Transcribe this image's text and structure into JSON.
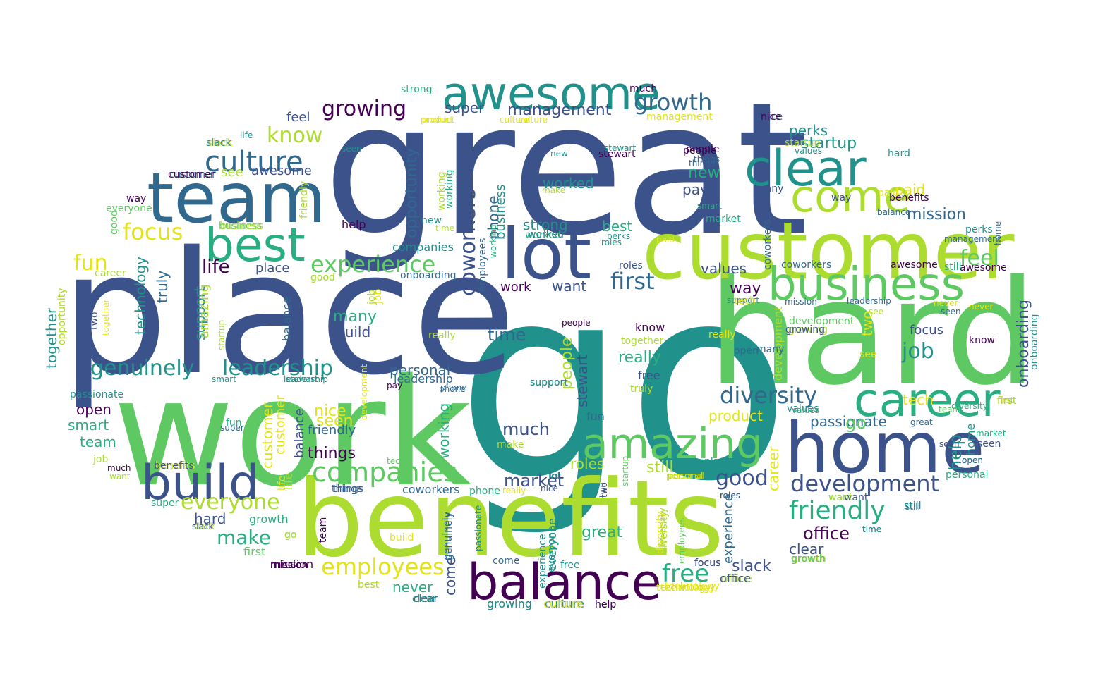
{
  "palette": {
    "c0": "#440154",
    "c1": "#3b528b",
    "c2": "#31688e",
    "c3": "#21918c",
    "c4": "#28ae80",
    "c5": "#5ec962",
    "c6": "#addc30",
    "c7": "#e3e418"
  },
  "words": [
    {
      "text": "go",
      "color": "c3"
    },
    {
      "text": "great",
      "color": "c1"
    },
    {
      "text": "place",
      "color": "c1"
    },
    {
      "text": "work",
      "color": "c5"
    },
    {
      "text": "hard",
      "color": "c5"
    },
    {
      "text": "benefits",
      "color": "c6"
    },
    {
      "text": "customer",
      "color": "c6"
    },
    {
      "text": "team",
      "color": "c2"
    },
    {
      "text": "awesome",
      "color": "c3"
    },
    {
      "text": "lot",
      "color": "c1"
    },
    {
      "text": "home",
      "color": "c1"
    },
    {
      "text": "clear",
      "color": "c3"
    },
    {
      "text": "come",
      "color": "c6"
    },
    {
      "text": "best",
      "color": "c4"
    },
    {
      "text": "business",
      "color": "c5"
    },
    {
      "text": "career",
      "color": "c4"
    },
    {
      "text": "balance",
      "color": "c0"
    },
    {
      "text": "build",
      "color": "c1"
    },
    {
      "text": "amazing",
      "color": "c5"
    },
    {
      "text": "culture",
      "color": "c2"
    },
    {
      "text": "growing",
      "color": "c0"
    },
    {
      "text": "growth",
      "color": "c2"
    },
    {
      "text": "companies",
      "color": "c5"
    },
    {
      "text": "development",
      "color": "c1"
    },
    {
      "text": "genuinely",
      "color": "c3"
    },
    {
      "text": "leadership",
      "color": "c3"
    },
    {
      "text": "diversity",
      "color": "c2"
    },
    {
      "text": "friendly",
      "color": "c4"
    },
    {
      "text": "experience",
      "color": "c5"
    },
    {
      "text": "employees",
      "color": "c7"
    },
    {
      "text": "everyone",
      "color": "c6"
    },
    {
      "text": "coworkers",
      "color": "c1"
    },
    {
      "text": "opportunity",
      "color": "c2"
    },
    {
      "text": "first",
      "color": "c2"
    },
    {
      "text": "focus",
      "color": "c7"
    },
    {
      "text": "know",
      "color": "c6"
    },
    {
      "text": "fun",
      "color": "c7"
    },
    {
      "text": "free",
      "color": "c4"
    },
    {
      "text": "feel",
      "color": "c5"
    },
    {
      "text": "job",
      "color": "c3"
    },
    {
      "text": "management",
      "color": "c1"
    },
    {
      "text": "good",
      "color": "c1"
    },
    {
      "text": "mission",
      "color": "c2"
    },
    {
      "text": "startup",
      "color": "c3"
    },
    {
      "text": "perks",
      "color": "c3"
    },
    {
      "text": "office",
      "color": "c0"
    },
    {
      "text": "super",
      "color": "c1"
    },
    {
      "text": "life",
      "color": "c0"
    },
    {
      "text": "make",
      "color": "c4"
    },
    {
      "text": "much",
      "color": "c1"
    },
    {
      "text": "time",
      "color": "c2"
    },
    {
      "text": "market",
      "color": "c1"
    },
    {
      "text": "passionate",
      "color": "c2"
    },
    {
      "text": "paid",
      "color": "c7"
    },
    {
      "text": "help",
      "color": "c3"
    },
    {
      "text": "worked",
      "color": "c3"
    },
    {
      "text": "strong",
      "color": "c3"
    },
    {
      "text": "new",
      "color": "c4"
    },
    {
      "text": "pay",
      "color": "c1"
    },
    {
      "text": "values",
      "color": "c1"
    },
    {
      "text": "way",
      "color": "c0"
    },
    {
      "text": "technology",
      "color": "c3"
    },
    {
      "text": "truly",
      "color": "c2"
    },
    {
      "text": "support",
      "color": "c3"
    },
    {
      "text": "people",
      "color": "c6"
    },
    {
      "text": "stewart",
      "color": "c1"
    },
    {
      "text": "seen",
      "color": "c7"
    },
    {
      "text": "nice",
      "color": "c7"
    },
    {
      "text": "still",
      "color": "c6"
    },
    {
      "text": "roles",
      "color": "c6"
    },
    {
      "text": "open",
      "color": "c0"
    },
    {
      "text": "smart",
      "color": "c4"
    },
    {
      "text": "things",
      "color": "c0"
    },
    {
      "text": "product",
      "color": "c7"
    },
    {
      "text": "tech",
      "color": "c7"
    },
    {
      "text": "two",
      "color": "c7"
    },
    {
      "text": "slack",
      "color": "c1"
    },
    {
      "text": "never",
      "color": "c4"
    },
    {
      "text": "onboarding",
      "color": "c1"
    },
    {
      "text": "want",
      "color": "c1"
    },
    {
      "text": "really",
      "color": "c4"
    },
    {
      "text": "many",
      "color": "c4"
    },
    {
      "text": "personal",
      "color": "c2"
    },
    {
      "text": "working",
      "color": "c4"
    },
    {
      "text": "phone",
      "color": "c2"
    },
    {
      "text": "together",
      "color": "c3"
    },
    {
      "text": "see",
      "color": "c6"
    },
    {
      "text": "hard",
      "color": "c1"
    },
    {
      "text": "great",
      "color": "c4"
    },
    {
      "text": "place",
      "color": "c1"
    },
    {
      "text": "work",
      "color": "c0"
    },
    {
      "text": "best",
      "color": "c4"
    },
    {
      "text": "customer",
      "color": "c7"
    },
    {
      "text": "team",
      "color": "c4"
    },
    {
      "text": "amazing",
      "color": "c6"
    },
    {
      "text": "awesome",
      "color": "c1"
    },
    {
      "text": "benefits",
      "color": "c7"
    },
    {
      "text": "business",
      "color": "c3"
    },
    {
      "text": "balance",
      "color": "c1"
    },
    {
      "text": "build",
      "color": "c1"
    },
    {
      "text": "career",
      "color": "c7"
    },
    {
      "text": "clear",
      "color": "c1"
    },
    {
      "text": "come",
      "color": "c1"
    },
    {
      "text": "companies",
      "color": "c3"
    },
    {
      "text": "coworkers",
      "color": "c2"
    },
    {
      "text": "culture",
      "color": "c7"
    },
    {
      "text": "customer",
      "color": "c7"
    },
    {
      "text": "development",
      "color": "c6"
    },
    {
      "text": "diversity",
      "color": "c6"
    },
    {
      "text": "employees",
      "color": "c2"
    },
    {
      "text": "everyone",
      "color": "c3"
    },
    {
      "text": "experience",
      "color": "c2"
    },
    {
      "text": "feel",
      "color": "c1"
    },
    {
      "text": "first",
      "color": "c5"
    },
    {
      "text": "focus",
      "color": "c1"
    },
    {
      "text": "free",
      "color": "c1"
    },
    {
      "text": "friendly",
      "color": "c2"
    },
    {
      "text": "fun",
      "color": "c2"
    },
    {
      "text": "genuinely",
      "color": "c2"
    },
    {
      "text": "go",
      "color": "c5"
    },
    {
      "text": "good",
      "color": "c6"
    },
    {
      "text": "growing",
      "color": "c2"
    },
    {
      "text": "growth",
      "color": "c4"
    },
    {
      "text": "hard",
      "color": "c3"
    },
    {
      "text": "help",
      "color": "c0"
    },
    {
      "text": "home",
      "color": "c3"
    },
    {
      "text": "job",
      "color": "c6"
    },
    {
      "text": "know",
      "color": "c0"
    },
    {
      "text": "leadership",
      "color": "c2"
    },
    {
      "text": "life",
      "color": "c6"
    },
    {
      "text": "lot",
      "color": "c1"
    },
    {
      "text": "make",
      "color": "c6"
    },
    {
      "text": "management",
      "color": "c7"
    },
    {
      "text": "many",
      "color": "c1"
    },
    {
      "text": "market",
      "color": "c4"
    },
    {
      "text": "mission",
      "color": "c0"
    },
    {
      "text": "much",
      "color": "c0"
    },
    {
      "text": "never",
      "color": "c7"
    },
    {
      "text": "new",
      "color": "c3"
    },
    {
      "text": "nice",
      "color": "c1"
    },
    {
      "text": "office",
      "color": "c6"
    },
    {
      "text": "onboarding",
      "color": "c3"
    },
    {
      "text": "open",
      "color": "c2"
    },
    {
      "text": "opportunity",
      "color": "c7"
    },
    {
      "text": "paid",
      "color": "c7"
    },
    {
      "text": "passionate",
      "color": "c3"
    },
    {
      "text": "pay",
      "color": "c0"
    },
    {
      "text": "people",
      "color": "c0"
    },
    {
      "text": "perks",
      "color": "c3"
    },
    {
      "text": "personal",
      "color": "c4"
    },
    {
      "text": "phone",
      "color": "c4"
    },
    {
      "text": "product",
      "color": "c7"
    },
    {
      "text": "really",
      "color": "c7"
    },
    {
      "text": "roles",
      "color": "c1"
    },
    {
      "text": "see",
      "color": "c7"
    },
    {
      "text": "seen",
      "color": "c1"
    },
    {
      "text": "slack",
      "color": "c7"
    },
    {
      "text": "smart",
      "color": "c3"
    },
    {
      "text": "startup",
      "color": "c6"
    },
    {
      "text": "stewart",
      "color": "c0"
    },
    {
      "text": "still",
      "color": "c3"
    },
    {
      "text": "strong",
      "color": "c4"
    },
    {
      "text": "super",
      "color": "c2"
    },
    {
      "text": "support",
      "color": "c3"
    },
    {
      "text": "tech",
      "color": "c7"
    },
    {
      "text": "technology",
      "color": "c7"
    },
    {
      "text": "things",
      "color": "c1"
    },
    {
      "text": "time",
      "color": "c1"
    },
    {
      "text": "together",
      "color": "c7"
    },
    {
      "text": "truly",
      "color": "c3"
    },
    {
      "text": "two",
      "color": "c1"
    },
    {
      "text": "values",
      "color": "c3"
    },
    {
      "text": "want",
      "color": "c6"
    },
    {
      "text": "way",
      "color": "c0"
    },
    {
      "text": "worked",
      "color": "c2"
    },
    {
      "text": "working",
      "color": "c6"
    },
    {
      "text": "best",
      "color": "c7"
    },
    {
      "text": "clear",
      "color": "c2"
    },
    {
      "text": "culture",
      "color": "c3"
    },
    {
      "text": "leadership",
      "color": "c3"
    },
    {
      "text": "growth",
      "color": "c5"
    },
    {
      "text": "balance",
      "color": "c2"
    },
    {
      "text": "awesome",
      "color": "c0"
    },
    {
      "text": "benefits",
      "color": "c0"
    },
    {
      "text": "job",
      "color": "c7"
    },
    {
      "text": "business",
      "color": "c5"
    },
    {
      "text": "diversity",
      "color": "c6"
    },
    {
      "text": "development",
      "color": "c7"
    },
    {
      "text": "coworkers",
      "color": "c2"
    },
    {
      "text": "people",
      "color": "c0"
    },
    {
      "text": "things",
      "color": "c2"
    },
    {
      "text": "personal",
      "color": "c6"
    },
    {
      "text": "values",
      "color": "c3"
    },
    {
      "text": "perks",
      "color": "c3"
    },
    {
      "text": "customer",
      "color": "c2"
    },
    {
      "text": "everyone",
      "color": "c4"
    },
    {
      "text": "slack",
      "color": "c6"
    },
    {
      "text": "life",
      "color": "c3"
    },
    {
      "text": "seen",
      "color": "c3"
    },
    {
      "text": "new",
      "color": "c3"
    },
    {
      "text": "make",
      "color": "c6"
    },
    {
      "text": "many",
      "color": "c2"
    },
    {
      "text": "two",
      "color": "c1"
    },
    {
      "text": "friendly",
      "color": "c6"
    },
    {
      "text": "management",
      "color": "c2"
    },
    {
      "text": "paid",
      "color": "c7"
    },
    {
      "text": "mission",
      "color": "c2"
    },
    {
      "text": "working",
      "color": "c4"
    },
    {
      "text": "support",
      "color": "c3"
    },
    {
      "text": "onboarding",
      "color": "c2"
    },
    {
      "text": "technology",
      "color": "c7"
    },
    {
      "text": "leadership",
      "color": "c2"
    },
    {
      "text": "still",
      "color": "c4"
    },
    {
      "text": "want",
      "color": "c4"
    },
    {
      "text": "time",
      "color": "c6"
    },
    {
      "text": "phone",
      "color": "c2"
    },
    {
      "text": "good",
      "color": "c5"
    },
    {
      "text": "roles",
      "color": "c0"
    },
    {
      "text": "market",
      "color": "c4"
    },
    {
      "text": "together",
      "color": "c6"
    },
    {
      "text": "awesome",
      "color": "c0"
    },
    {
      "text": "know",
      "color": "c0"
    },
    {
      "text": "open",
      "color": "c2"
    },
    {
      "text": "seen",
      "color": "c2"
    },
    {
      "text": "never",
      "color": "c7"
    },
    {
      "text": "see",
      "color": "c6"
    },
    {
      "text": "first",
      "color": "c7"
    },
    {
      "text": "really",
      "color": "c6"
    },
    {
      "text": "startup",
      "color": "c6"
    },
    {
      "text": "balance",
      "color": "c2"
    },
    {
      "text": "passionate",
      "color": "c3"
    },
    {
      "text": "great",
      "color": "c2"
    },
    {
      "text": "home",
      "color": "c2"
    },
    {
      "text": "development",
      "color": "c5"
    },
    {
      "text": "growing",
      "color": "c6"
    },
    {
      "text": "values",
      "color": "c4"
    },
    {
      "text": "coworkers",
      "color": "c2"
    },
    {
      "text": "truly",
      "color": "c6"
    },
    {
      "text": "stewart",
      "color": "c3"
    },
    {
      "text": "people",
      "color": "c0"
    },
    {
      "text": "things",
      "color": "c2"
    },
    {
      "text": "personal",
      "color": "c6"
    },
    {
      "text": "nice",
      "color": "c0"
    },
    {
      "text": "smart",
      "color": "c4"
    },
    {
      "text": "culture",
      "color": "c7"
    },
    {
      "text": "product",
      "color": "c7"
    },
    {
      "text": "customer",
      "color": "c0"
    },
    {
      "text": "way",
      "color": "c1"
    },
    {
      "text": "everyone",
      "color": "c5"
    },
    {
      "text": "business",
      "color": "c6"
    },
    {
      "text": "opportunity",
      "color": "c6"
    },
    {
      "text": "career",
      "color": "c6"
    },
    {
      "text": "job",
      "color": "c6"
    },
    {
      "text": "focus",
      "color": "c1"
    },
    {
      "text": "much",
      "color": "c0"
    },
    {
      "text": "want",
      "color": "c1"
    },
    {
      "text": "benefits",
      "color": "c1"
    },
    {
      "text": "super",
      "color": "c4"
    },
    {
      "text": "slack",
      "color": "c3"
    },
    {
      "text": "fun",
      "color": "c4"
    },
    {
      "text": "team",
      "color": "c5"
    },
    {
      "text": "tech",
      "color": "c5"
    },
    {
      "text": "life",
      "color": "c7"
    },
    {
      "text": "worked",
      "color": "c4"
    },
    {
      "text": "working",
      "color": "c4"
    },
    {
      "text": "diversity",
      "color": "c4"
    },
    {
      "text": "go",
      "color": "c5"
    },
    {
      "text": "first",
      "color": "c5"
    },
    {
      "text": "still",
      "color": "c2"
    },
    {
      "text": "mission",
      "color": "c0"
    },
    {
      "text": "good",
      "color": "c6"
    },
    {
      "text": "growing",
      "color": "c1"
    },
    {
      "text": "help",
      "color": "c2"
    },
    {
      "text": "things",
      "color": "c2"
    },
    {
      "text": "phone",
      "color": "c2"
    },
    {
      "text": "really",
      "color": "c7"
    },
    {
      "text": "nice",
      "color": "c1"
    },
    {
      "text": "lot",
      "color": "c3"
    },
    {
      "text": "startup",
      "color": "c5"
    },
    {
      "text": "two",
      "color": "c1"
    },
    {
      "text": "roles",
      "color": "c3"
    },
    {
      "text": "place",
      "color": "c3"
    },
    {
      "text": "personal",
      "color": "c7"
    },
    {
      "text": "seen",
      "color": "c1"
    },
    {
      "text": "open",
      "color": "c2"
    },
    {
      "text": "want",
      "color": "c6"
    },
    {
      "text": "experience",
      "color": "c3"
    },
    {
      "text": "employees",
      "color": "c5"
    },
    {
      "text": "diversity",
      "color": "c7"
    },
    {
      "text": "stewart",
      "color": "c3"
    },
    {
      "text": "passionate",
      "color": "c3"
    },
    {
      "text": "team",
      "color": "c0"
    },
    {
      "text": "time",
      "color": "c3"
    },
    {
      "text": "slack",
      "color": "c1"
    },
    {
      "text": "growth",
      "color": "c6"
    },
    {
      "text": "go",
      "color": "c6"
    },
    {
      "text": "first",
      "color": "c6"
    },
    {
      "text": "mission",
      "color": "c0"
    },
    {
      "text": "best",
      "color": "c6"
    },
    {
      "text": "build",
      "color": "c7"
    },
    {
      "text": "genuinely",
      "color": "c2"
    },
    {
      "text": "come",
      "color": "c2"
    },
    {
      "text": "clear",
      "color": "c3"
    },
    {
      "text": "culture",
      "color": "c7"
    },
    {
      "text": "growing",
      "color": "c3"
    },
    {
      "text": "everyone",
      "color": "c3"
    },
    {
      "text": "free",
      "color": "c3"
    },
    {
      "text": "help",
      "color": "c0"
    },
    {
      "text": "focus",
      "color": "c1"
    },
    {
      "text": "office",
      "color": "c1"
    },
    {
      "text": "technology",
      "color": "c7"
    },
    {
      "text": "still",
      "color": "c3"
    },
    {
      "text": "growth",
      "color": "c5"
    },
    {
      "text": "mission",
      "color": "c0"
    },
    {
      "text": "support",
      "color": "c3"
    },
    {
      "text": "roles",
      "color": "c2"
    }
  ]
}
